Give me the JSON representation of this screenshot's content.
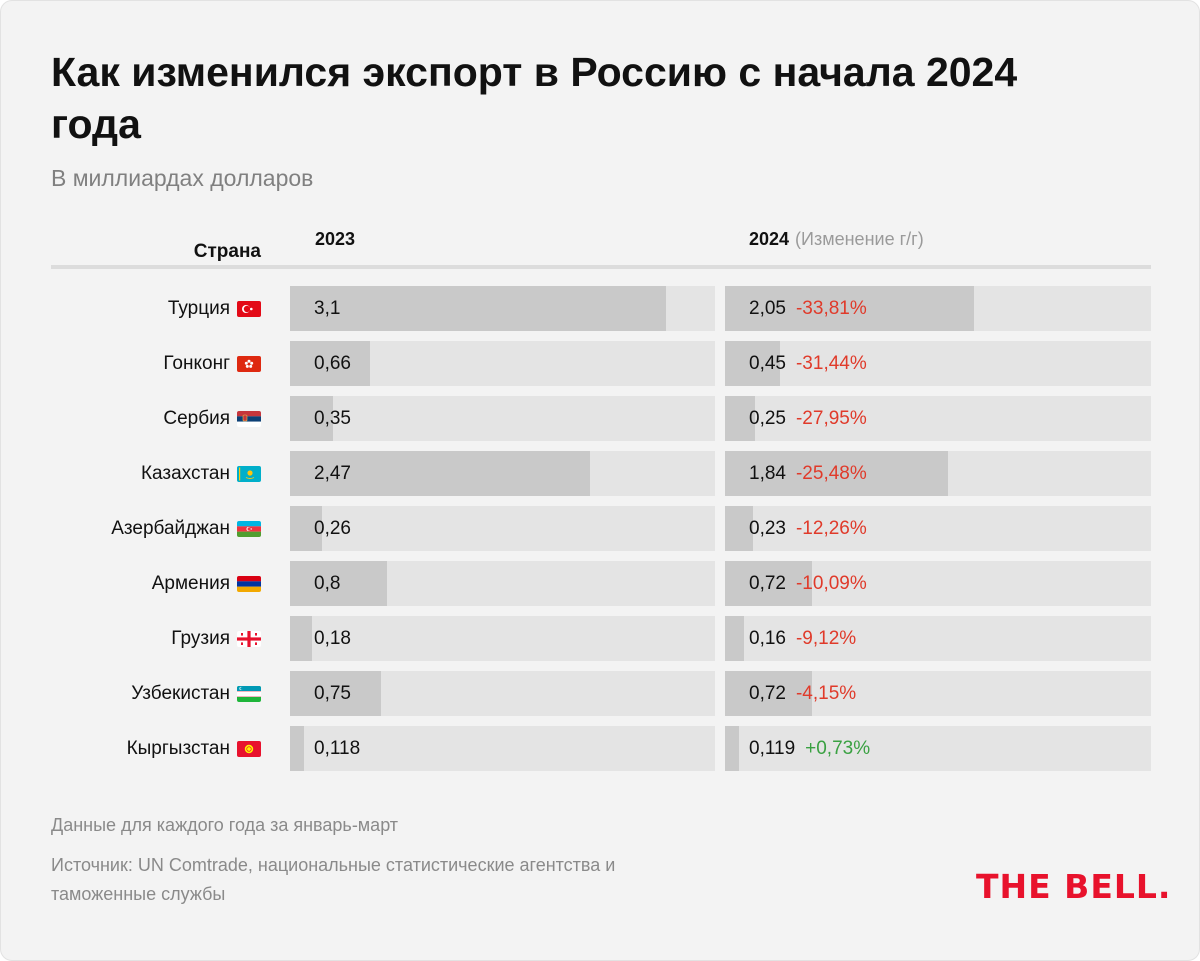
{
  "title": "Как изменился экспорт в Россию с начала 2024 года",
  "subtitle": "В миллиардах долларов",
  "columns": {
    "country": "Страна",
    "y2023": "2023",
    "y2024": "2024",
    "y2024_note": "(Изменение г/г)"
  },
  "footnote": "Данные для каждого года за январь-март",
  "source": "Источник: UN Comtrade, национальные статистические агентства и таможенные службы",
  "logo": "THE BELL.",
  "colors": {
    "negative": "#e03a2a",
    "positive": "#3aa142",
    "bar_fill": "#c9c9c9",
    "bar_track": "#e4e4e4",
    "logo": "#e8122c"
  },
  "chart_data": {
    "type": "bar",
    "xlim": [
      0,
      3.5
    ],
    "categories": [
      "Турция",
      "Гонконг",
      "Сербия",
      "Казахстан",
      "Азербайджан",
      "Армения",
      "Грузия",
      "Узбекистан",
      "Кыргызстан"
    ],
    "series": [
      {
        "name": "2023",
        "values": [
          3.1,
          0.66,
          0.35,
          2.47,
          0.26,
          0.8,
          0.18,
          0.75,
          0.118
        ]
      },
      {
        "name": "2024",
        "values": [
          2.05,
          0.45,
          0.25,
          1.84,
          0.23,
          0.72,
          0.16,
          0.72,
          0.119
        ]
      }
    ],
    "rows": [
      {
        "country": "Турция",
        "flag": "turkey-flag-icon",
        "v2023": 3.1,
        "v2024": 2.05,
        "label2023": "3,1",
        "label2024": "2,05",
        "change": "-33,81%",
        "dir": "neg"
      },
      {
        "country": "Гонконг",
        "flag": "hong-kong-flag-icon",
        "v2023": 0.66,
        "v2024": 0.45,
        "label2023": "0,66",
        "label2024": "0,45",
        "change": "-31,44%",
        "dir": "neg"
      },
      {
        "country": "Сербия",
        "flag": "serbia-flag-icon",
        "v2023": 0.35,
        "v2024": 0.25,
        "label2023": "0,35",
        "label2024": "0,25",
        "change": "-27,95%",
        "dir": "neg"
      },
      {
        "country": "Казахстан",
        "flag": "kazakhstan-flag-icon",
        "v2023": 2.47,
        "v2024": 1.84,
        "label2023": "2,47",
        "label2024": "1,84",
        "change": "-25,48%",
        "dir": "neg"
      },
      {
        "country": "Азербайджан",
        "flag": "azerbaijan-flag-icon",
        "v2023": 0.26,
        "v2024": 0.23,
        "label2023": "0,26",
        "label2024": "0,23",
        "change": "-12,26%",
        "dir": "neg"
      },
      {
        "country": "Армения",
        "flag": "armenia-flag-icon",
        "v2023": 0.8,
        "v2024": 0.72,
        "label2023": "0,8",
        "label2024": "0,72",
        "change": "-10,09%",
        "dir": "neg"
      },
      {
        "country": "Грузия",
        "flag": "georgia-flag-icon",
        "v2023": 0.18,
        "v2024": 0.16,
        "label2023": "0,18",
        "label2024": "0,16",
        "change": "-9,12%",
        "dir": "neg"
      },
      {
        "country": "Узбекистан",
        "flag": "uzbekistan-flag-icon",
        "v2023": 0.75,
        "v2024": 0.72,
        "label2023": "0,75",
        "label2024": "0,72",
        "change": "-4,15%",
        "dir": "neg"
      },
      {
        "country": "Кыргызстан",
        "flag": "kyrgyzstan-flag-icon",
        "v2023": 0.118,
        "v2024": 0.119,
        "label2023": "0,118",
        "label2024": "0,119",
        "change": "+0,73%",
        "dir": "pos"
      }
    ]
  }
}
